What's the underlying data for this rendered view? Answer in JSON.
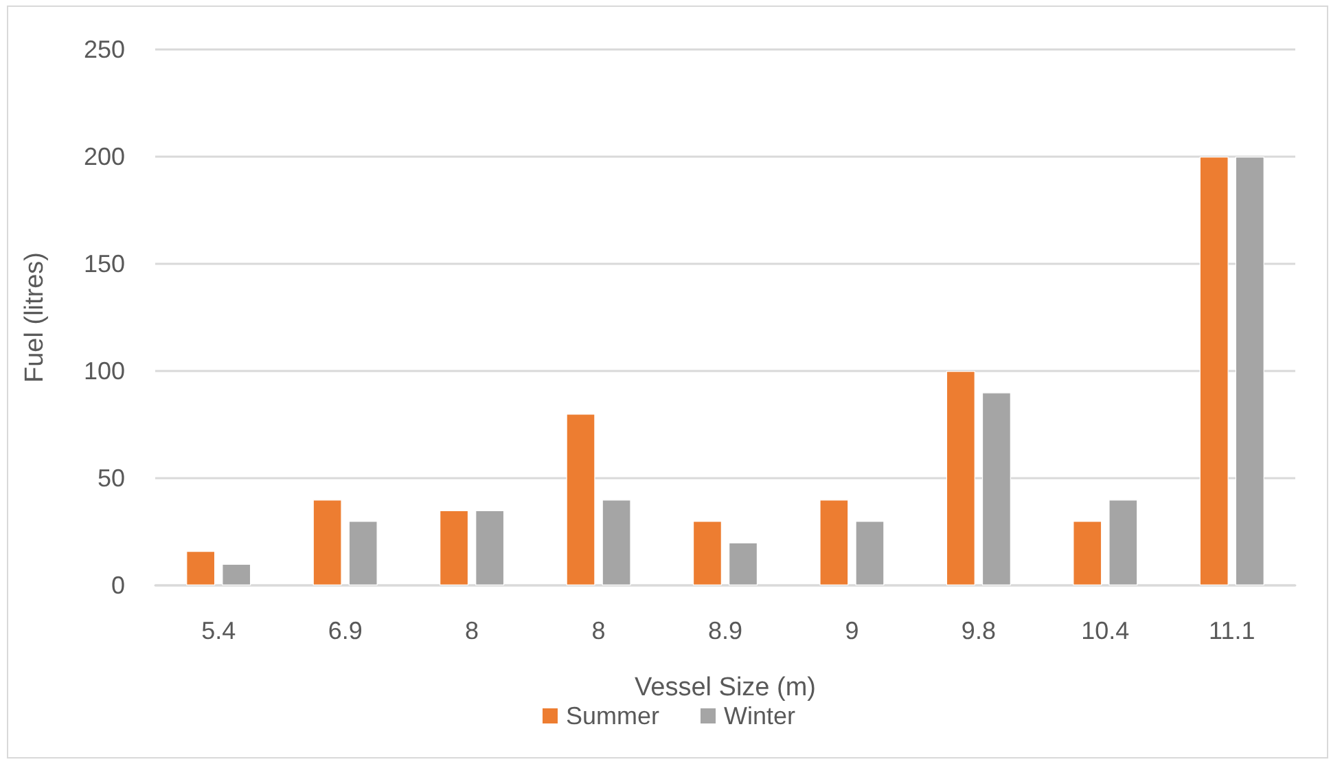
{
  "chart_data": {
    "type": "bar",
    "xlabel": "Vessel Size (m)",
    "ylabel": "Fuel (litres)",
    "categories": [
      "5.4",
      "6.9",
      "8",
      "8",
      "8.9",
      "9",
      "9.8",
      "10.4",
      "11.1"
    ],
    "series": [
      {
        "name": "Summer",
        "color": "#ed7d31",
        "values": [
          16,
          40,
          35,
          80,
          30,
          40,
          100,
          30,
          200
        ]
      },
      {
        "name": "Winter",
        "color": "#a5a5a5",
        "values": [
          10,
          30,
          35,
          40,
          20,
          30,
          90,
          40,
          200
        ]
      }
    ],
    "ylim": [
      0,
      250
    ],
    "yticks": [
      0,
      50,
      100,
      150,
      200,
      250
    ],
    "grid": "y",
    "legend": "bottom"
  }
}
